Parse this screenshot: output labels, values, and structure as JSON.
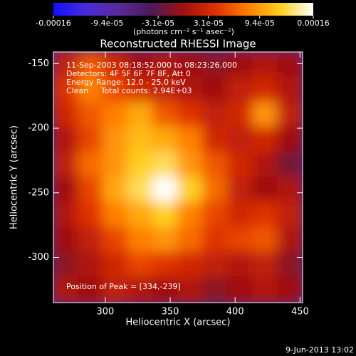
{
  "chart_data": {
    "type": "heatmap",
    "title": "Reconstructed RHESSI Image",
    "xlabel": "Heliocentric X (arcsec)",
    "ylabel": "Heliocentric Y (arcsec)",
    "xlim": [
      260,
      452
    ],
    "ylim": [
      -335,
      -141
    ],
    "xticks": [
      300,
      350,
      400,
      450
    ],
    "yticks": [
      -150,
      -200,
      -250,
      -300
    ],
    "colorbar": {
      "label": "(photons cm⁻² s⁻¹ asec⁻²)",
      "lim": [
        -0.00016,
        0.00016
      ],
      "ticks": [
        -0.00016,
        {
          "value": -9.4e-05,
          "label": "-9.4e-05"
        },
        {
          "value": -3.1e-05,
          "label": "-3.1e-05"
        },
        {
          "value": 3.1e-05,
          "label": "3.1e-05"
        },
        {
          "value": 9.4e-05,
          "label": "9.4e-05"
        },
        0.00016
      ],
      "colors": [
        "#1010ff",
        "#4a2ad8",
        "#5a2a9a",
        "#4a1a5a",
        "#a01010",
        "#e03000",
        "#ff8000",
        "#ffd020",
        "#ffffff"
      ]
    },
    "annotations": [
      "11-Sep-2003 08:18:52.000 to 08:23:26.000",
      "Detectors: 4F 5F 6F 7F 8F, Att 0",
      "Energy Range: 12.0 - 25.0 keV",
      "Clean     Total counts: 2.94E+03",
      "Position of Peak = [334,-239]"
    ],
    "footer": "9-Jun-2013 13:02",
    "z": [
      [
        2e-05,
        6e-05,
        3e-05,
        0,
        1e-05,
        0,
        -1e-05,
        0,
        1e-05,
        0
      ],
      [
        4e-05,
        8e-05,
        5e-05,
        3e-05,
        2e-05,
        1e-05,
        0,
        2e-05,
        3e-05,
        1e-05
      ],
      [
        3e-05,
        6e-05,
        8e-05,
        0.0001,
        6e-05,
        4e-05,
        2e-05,
        3e-05,
        9e-05,
        2e-05
      ],
      [
        1e-05,
        5e-05,
        9e-05,
        0.00011,
        0.0001,
        8e-05,
        3e-05,
        2e-05,
        3e-05,
        0
      ],
      [
        2e-05,
        7e-05,
        9e-05,
        0.00012,
        0.00013,
        9e-05,
        6e-05,
        3e-05,
        1e-05,
        -2e-05
      ],
      [
        0,
        5e-05,
        0.0001,
        0.00013,
        0.00016,
        0.00012,
        7e-05,
        2e-05,
        0,
        1e-05
      ],
      [
        1e-05,
        4e-05,
        8e-05,
        0.0001,
        0.00012,
        8e-05,
        5e-05,
        3e-05,
        4e-05,
        2e-05
      ],
      [
        0,
        2e-05,
        5e-05,
        8e-05,
        9e-05,
        7e-05,
        4e-05,
        5e-05,
        6e-05,
        1e-05
      ],
      [
        -1e-05,
        1e-05,
        3e-05,
        5e-05,
        4e-05,
        3e-05,
        2e-05,
        1e-05,
        2e-05,
        -1e-05
      ],
      [
        1e-05,
        0,
        2e-05,
        1e-05,
        0,
        1e-05,
        -1e-05,
        0,
        1e-05,
        0
      ]
    ]
  }
}
